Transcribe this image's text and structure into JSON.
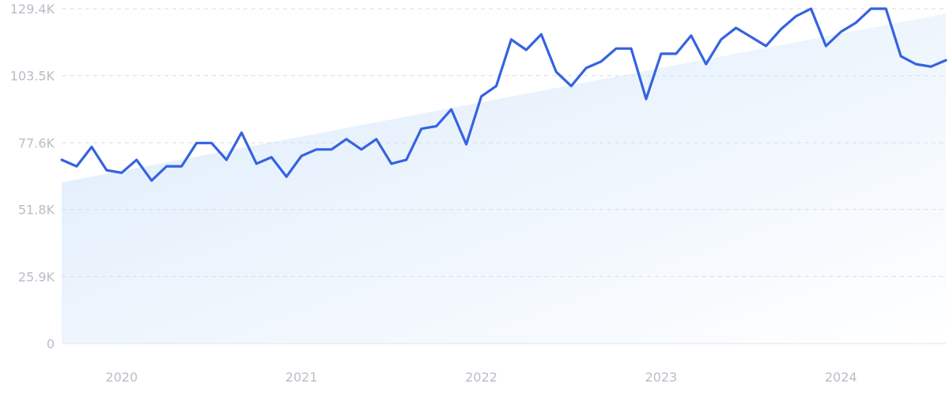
{
  "chart_data": {
    "type": "line",
    "title": "",
    "xlabel": "",
    "ylabel": "",
    "ylim": [
      0,
      129400
    ],
    "y_ticks": [
      {
        "value": 0,
        "label": "0"
      },
      {
        "value": 25900,
        "label": "25.9K"
      },
      {
        "value": 51800,
        "label": "51.8K"
      },
      {
        "value": 77600,
        "label": "77.6K"
      },
      {
        "value": 103500,
        "label": "103.5K"
      },
      {
        "value": 129400,
        "label": "129.4K"
      }
    ],
    "xlim": [
      "2019-09",
      "2024-08"
    ],
    "x_ticks": [
      {
        "value": "2020-01",
        "label": "2020"
      },
      {
        "value": "2021-01",
        "label": "2021"
      },
      {
        "value": "2022-01",
        "label": "2022"
      },
      {
        "value": "2023-01",
        "label": "2023"
      },
      {
        "value": "2024-01",
        "label": "2024"
      }
    ],
    "grid": true,
    "legend": "none",
    "colors": {
      "line": "#3563e0",
      "trend_fill_start": "#dcebfb",
      "trend_fill_end": "#ffffff",
      "grid": "#d6dde8",
      "tick_text": "#b9bdc6"
    },
    "trend": {
      "start": [
        "2019-09",
        62300
      ],
      "end": [
        "2024-08",
        127500
      ]
    },
    "series": [
      {
        "x": [
          "2019-09",
          "2019-10",
          "2019-11",
          "2019-12",
          "2020-01",
          "2020-02",
          "2020-03",
          "2020-04",
          "2020-05",
          "2020-06",
          "2020-07",
          "2020-08",
          "2020-09",
          "2020-10",
          "2020-11",
          "2020-12",
          "2021-01",
          "2021-02",
          "2021-03",
          "2021-04",
          "2021-05",
          "2021-06",
          "2021-07",
          "2021-08",
          "2021-09",
          "2021-10",
          "2021-11",
          "2021-12",
          "2022-01",
          "2022-02",
          "2022-03",
          "2022-04",
          "2022-05",
          "2022-06",
          "2022-07",
          "2022-08",
          "2022-09",
          "2022-10",
          "2022-11",
          "2022-12",
          "2023-01",
          "2023-02",
          "2023-03",
          "2023-04",
          "2023-05",
          "2023-06",
          "2023-07",
          "2023-08",
          "2023-09",
          "2023-10",
          "2023-11",
          "2023-12",
          "2024-01",
          "2024-02",
          "2024-03",
          "2024-04",
          "2024-05",
          "2024-06",
          "2024-07",
          "2024-08"
        ],
        "values": [
          71000,
          68500,
          76000,
          67000,
          66000,
          71000,
          63000,
          68500,
          68500,
          77500,
          77500,
          71000,
          81500,
          69500,
          72000,
          64500,
          72500,
          75000,
          75000,
          79000,
          75000,
          79000,
          69500,
          71000,
          83000,
          84000,
          90500,
          77000,
          95500,
          99500,
          117500,
          113500,
          119500,
          105000,
          99500,
          106500,
          109000,
          114000,
          114000,
          94500,
          112000,
          112000,
          119000,
          108000,
          117500,
          122000,
          118500,
          115000,
          121500,
          126500,
          129400,
          115000,
          120500,
          124000,
          129400,
          129400,
          111000,
          108000,
          107000,
          109500
        ]
      }
    ]
  }
}
